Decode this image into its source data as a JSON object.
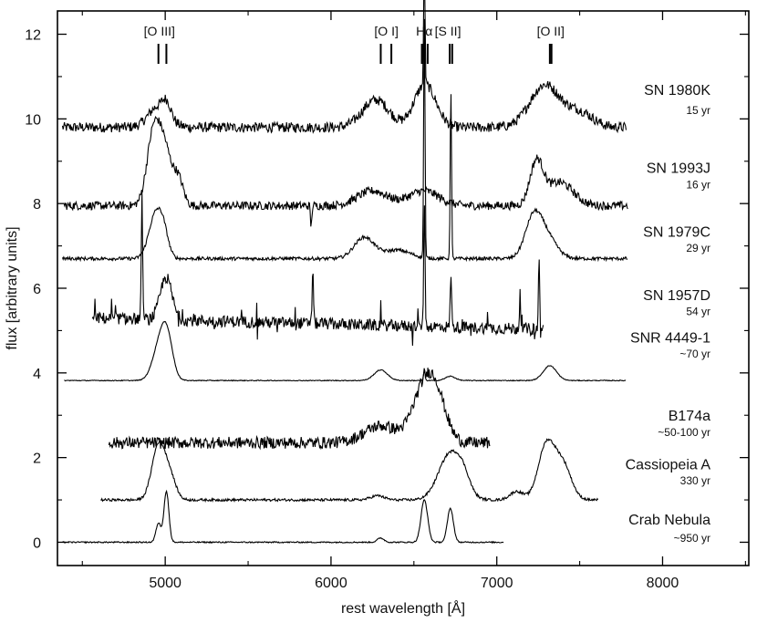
{
  "chart_data": {
    "type": "line",
    "xlabel": "rest wavelength [Å]",
    "ylabel": "flux [arbitrary units]",
    "xlim": [
      4350,
      8520
    ],
    "ylim": [
      -0.55,
      12.55
    ],
    "x_ticks": [
      5000,
      6000,
      7000,
      8000
    ],
    "y_ticks": [
      0,
      2,
      4,
      6,
      8,
      10,
      12
    ],
    "grid": false,
    "legend": "none",
    "line_ids": [
      {
        "label": "[O III]",
        "label_x": 4965,
        "ticks": [
          4959,
          5007
        ]
      },
      {
        "label": "[O I]",
        "label_x": 6334,
        "ticks": [
          6300,
          6364
        ]
      },
      {
        "label": "Hα",
        "label_x": 6563,
        "ticks": [
          6548,
          6563,
          6583
        ]
      },
      {
        "label": "[S II]",
        "label_x": 6705,
        "ticks": [
          6716,
          6731
        ]
      },
      {
        "label": "[O II]",
        "label_x": 7325,
        "ticks": [
          7320,
          7330
        ]
      }
    ],
    "series": [
      {
        "name": "SN 1980K",
        "age": "15 yr",
        "label_y": 10.7,
        "age_y": 10.2,
        "xrange": [
          4380,
          7780
        ],
        "offset": 9.8,
        "noise": 0.12,
        "spike": 0,
        "base_slope": 0,
        "features": [
          [
            4960,
            0.5,
            60
          ],
          [
            5010,
            0.3,
            25
          ],
          [
            6270,
            0.65,
            80
          ],
          [
            6550,
            0.7,
            60
          ],
          [
            6600,
            0.4,
            60
          ],
          [
            7290,
            1.0,
            90
          ],
          [
            7500,
            0.35,
            80
          ]
        ],
        "lines": [
          [
            6563,
            2.9
          ]
        ]
      },
      {
        "name": "SN 1993J",
        "age": "16 yr",
        "label_y": 8.85,
        "age_y": 8.45,
        "xrange": [
          4390,
          7790
        ],
        "offset": 7.95,
        "noise": 0.1,
        "spike": 0,
        "base_slope": 0,
        "features": [
          [
            4930,
            1.7,
            40
          ],
          [
            5000,
            1.2,
            40
          ],
          [
            5080,
            0.6,
            30
          ],
          [
            6250,
            0.35,
            90
          ],
          [
            6560,
            0.35,
            90
          ],
          [
            7240,
            1.0,
            40
          ],
          [
            7380,
            0.55,
            80
          ]
        ],
        "lines": [
          [
            5880,
            -0.5
          ]
        ]
      },
      {
        "name": "SN 1979C",
        "age": "29 yr",
        "label_y": 7.35,
        "age_y": 6.95,
        "xrange": [
          4380,
          7790
        ],
        "offset": 6.7,
        "noise": 0.04,
        "spike": 0,
        "base_slope": 0,
        "features": [
          [
            4940,
            1.0,
            40
          ],
          [
            4990,
            0.5,
            30
          ],
          [
            6200,
            0.5,
            60
          ],
          [
            6400,
            0.2,
            80
          ],
          [
            7220,
            0.9,
            50
          ],
          [
            7300,
            0.5,
            60
          ]
        ],
        "lines": [
          [
            6563,
            5.8
          ],
          [
            6723,
            4.0
          ]
        ]
      },
      {
        "name": "SN 1957D",
        "age": "54 yr",
        "label_y": 5.85,
        "age_y": 5.45,
        "xrange": [
          4560,
          7280
        ],
        "offset": 5.3,
        "noise": 0.14,
        "spike": 0.28,
        "base_slope": -0.0001,
        "features": [
          [
            5005,
            1.0,
            35
          ]
        ],
        "lines": [
          [
            4860,
            2.9
          ],
          [
            5890,
            1.3
          ],
          [
            6563,
            3.0
          ],
          [
            6723,
            1.3
          ],
          [
            7140,
            0.8
          ],
          [
            7255,
            1.6
          ]
        ]
      },
      {
        "name": "SNR 4449-1",
        "age": "~70 yr",
        "label_y": 4.85,
        "age_y": 4.45,
        "xrange": [
          4390,
          7780
        ],
        "offset": 3.82,
        "noise": 0.01,
        "spike": 0,
        "base_slope": 0,
        "features": [
          [
            4960,
            0.7,
            40
          ],
          [
            5010,
            1.0,
            35
          ],
          [
            6300,
            0.25,
            40
          ],
          [
            6720,
            0.1,
            30
          ],
          [
            7320,
            0.35,
            40
          ]
        ],
        "lines": [
          [
            6563,
            0.3
          ]
        ]
      },
      {
        "name": "B174a",
        "age": "~50-100 yr",
        "label_y": 3.0,
        "age_y": 2.6,
        "xrange": [
          4660,
          6960
        ],
        "offset": 2.35,
        "noise": 0.14,
        "spike": 0,
        "base_slope": 0,
        "features": [
          [
            6560,
            1.2,
            70
          ],
          [
            6640,
            0.8,
            60
          ],
          [
            6300,
            0.4,
            100
          ]
        ],
        "lines": []
      },
      {
        "name": "Cassiopeia A",
        "age": "330 yr",
        "label_y": 1.85,
        "age_y": 1.45,
        "xrange": [
          4610,
          7610
        ],
        "offset": 1.0,
        "noise": 0.03,
        "spike": 0,
        "base_slope": 0,
        "features": [
          [
            4960,
            1.3,
            40
          ],
          [
            5030,
            0.5,
            35
          ],
          [
            6280,
            0.1,
            40
          ],
          [
            6720,
            1.1,
            70
          ],
          [
            6800,
            0.3,
            40
          ],
          [
            7300,
            1.3,
            50
          ],
          [
            7400,
            0.8,
            50
          ],
          [
            7120,
            0.2,
            40
          ]
        ],
        "lines": []
      },
      {
        "name": "Crab Nebula",
        "age": "~950 yr",
        "label_y": 0.55,
        "age_y": 0.1,
        "xrange": [
          4380,
          7040
        ],
        "offset": 0.0,
        "noise": 0.015,
        "spike": 0,
        "base_slope": 0,
        "features": [
          [
            4959,
            0.45,
            15
          ],
          [
            5007,
            1.2,
            15
          ],
          [
            6563,
            1.0,
            20
          ],
          [
            6720,
            0.8,
            18
          ],
          [
            6300,
            0.1,
            20
          ]
        ],
        "lines": []
      }
    ]
  }
}
